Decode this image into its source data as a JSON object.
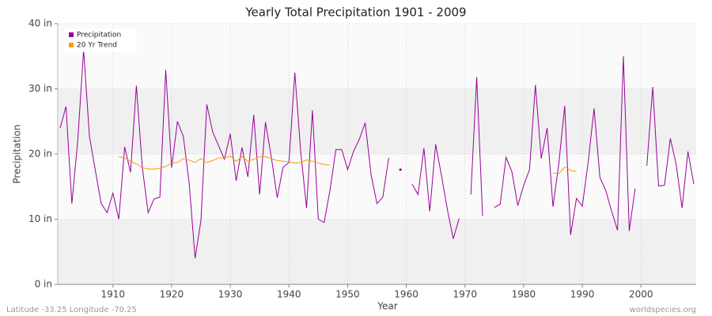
{
  "chart_data": {
    "type": "line",
    "title": "Yearly Total Precipitation 1901 - 2009",
    "x_label": "Year",
    "y_label": "Precipitation",
    "footer_left": "Latitude -33.25 Longitude -70.25",
    "footer_right": "worldspecies.org",
    "x": [
      1901,
      1902,
      1903,
      1904,
      1905,
      1906,
      1907,
      1908,
      1909,
      1910,
      1911,
      1912,
      1913,
      1914,
      1915,
      1916,
      1917,
      1918,
      1919,
      1920,
      1921,
      1922,
      1923,
      1924,
      1925,
      1926,
      1927,
      1928,
      1929,
      1930,
      1931,
      1932,
      1933,
      1934,
      1935,
      1936,
      1937,
      1938,
      1939,
      1940,
      1941,
      1942,
      1943,
      1944,
      1945,
      1946,
      1947,
      1948,
      1949,
      1950,
      1951,
      1952,
      1953,
      1954,
      1955,
      1956,
      1957,
      1958,
      1959,
      1960,
      1961,
      1962,
      1963,
      1964,
      1965,
      1966,
      1967,
      1968,
      1969,
      1970,
      1971,
      1972,
      1973,
      1974,
      1975,
      1976,
      1977,
      1978,
      1979,
      1980,
      1981,
      1982,
      1983,
      1984,
      1985,
      1986,
      1987,
      1988,
      1989,
      1990,
      1991,
      1992,
      1993,
      1994,
      1995,
      1996,
      1997,
      1998,
      1999,
      2000,
      2001,
      2002,
      2003,
      2004,
      2005,
      2006,
      2007,
      2008,
      2009
    ],
    "series": [
      {
        "name": "Precipitation",
        "color": "#990099",
        "values": [
          24,
          27.3,
          12.4,
          22,
          36,
          22.7,
          17.5,
          12.4,
          11,
          14,
          10,
          21.1,
          17.2,
          30.5,
          18,
          11,
          13.1,
          13.4,
          32.9,
          17.9,
          25,
          22.7,
          15.5,
          4,
          9.8,
          27.6,
          23.4,
          21.3,
          19.2,
          23.1,
          15.9,
          21,
          16.5,
          26,
          13.8,
          24.9,
          19.5,
          13.3,
          18,
          18.7,
          32.5,
          20.4,
          11.7,
          26.7,
          10,
          9.5,
          14.5,
          20.7,
          20.7,
          17.6,
          20.4,
          22.3,
          24.8,
          16.8,
          12.4,
          13.4,
          19.4,
          null,
          17.6,
          null,
          15.4,
          13.8,
          20.9,
          11.2,
          21.5,
          16.7,
          11.5,
          7,
          10.1,
          null,
          13.8,
          31.8,
          10.5,
          null,
          11.8,
          12.3,
          19.5,
          17.3,
          12.1,
          15.2,
          17.6,
          30.6,
          19.3,
          24,
          11.9,
          18.6,
          27.4,
          7.6,
          13.2,
          12,
          18.8,
          27,
          16.4,
          14.4,
          11.2,
          8.3,
          35,
          8.2,
          14.7,
          null,
          18.2,
          30.3,
          15.1,
          15.2,
          22.4,
          18.4,
          11.7,
          20.4,
          15.4
        ]
      },
      {
        "name": "20 Yr Trend",
        "color": "#ff9900",
        "values": [
          null,
          null,
          null,
          null,
          null,
          null,
          null,
          null,
          null,
          null,
          19.6,
          19.4,
          18.9,
          18.5,
          17.9,
          17.7,
          17.7,
          17.8,
          18.1,
          18.6,
          18.7,
          19.3,
          19.1,
          18.7,
          19.3,
          18.7,
          19,
          19.4,
          19.4,
          19.7,
          18.9,
          19.6,
          18.9,
          19.2,
          19.6,
          19.6,
          19.3,
          19,
          18.9,
          18.8,
          18.6,
          18.7,
          19.1,
          18.9,
          18.6,
          18.4,
          18.3,
          null,
          null,
          null,
          null,
          null,
          null,
          null,
          null,
          null,
          null,
          null,
          null,
          null,
          null,
          null,
          null,
          null,
          null,
          null,
          null,
          null,
          null,
          null,
          null,
          null,
          null,
          null,
          null,
          null,
          null,
          null,
          null,
          null,
          null,
          null,
          null,
          null,
          17.1,
          17,
          18,
          17.5,
          17.3,
          null,
          null,
          null,
          null,
          null,
          null,
          null,
          null,
          null,
          null,
          null,
          null,
          null,
          null,
          null,
          null,
          null,
          null,
          null,
          null
        ]
      }
    ],
    "xlim": [
      1901,
      2009
    ],
    "xticks": [
      1910,
      1920,
      1930,
      1940,
      1950,
      1960,
      1970,
      1980,
      1990,
      2000
    ],
    "ylim": [
      0,
      40
    ],
    "yticks": [
      {
        "value": 0,
        "label": "0 in"
      },
      {
        "value": 10,
        "label": "10 in"
      },
      {
        "value": 20,
        "label": "20 in"
      },
      {
        "value": 30,
        "label": "30 in"
      },
      {
        "value": 40,
        "label": "40 in"
      }
    ],
    "grid": true,
    "legend": "top-left"
  }
}
